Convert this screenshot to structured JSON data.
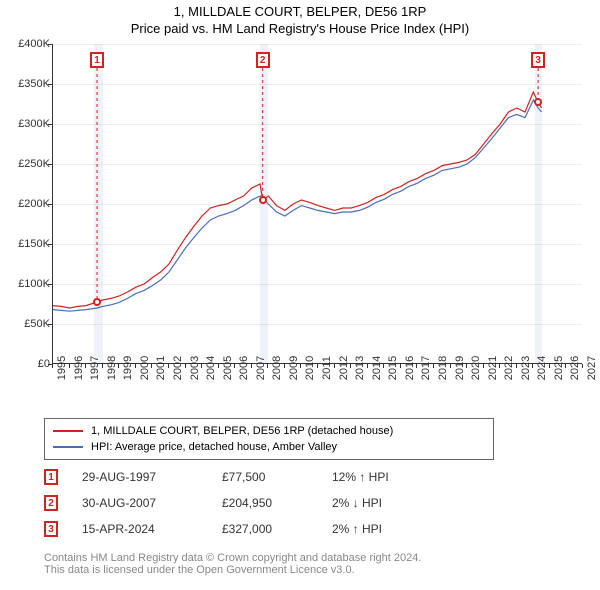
{
  "title_line1": "1, MILLDALE COURT, BELPER, DE56 1RP",
  "title_line2": "Price paid vs. HM Land Registry's House Price Index (HPI)",
  "chart": {
    "type": "line",
    "background_color": "#ffffff",
    "grid_color": "#eeeeee",
    "axis_color": "#333333",
    "label_fontsize": 11,
    "x": {
      "min_year": 1995,
      "max_year": 2027,
      "ticks": [
        1995,
        1996,
        1997,
        1998,
        1999,
        2000,
        2001,
        2002,
        2003,
        2004,
        2005,
        2006,
        2007,
        2008,
        2009,
        2010,
        2011,
        2012,
        2013,
        2014,
        2015,
        2016,
        2017,
        2018,
        2019,
        2020,
        2021,
        2022,
        2023,
        2024,
        2025,
        2026,
        2027
      ]
    },
    "y": {
      "min": 0,
      "max": 400000,
      "tick_step": 50000,
      "tick_labels": [
        "£0",
        "£50K",
        "£100K",
        "£150K",
        "£200K",
        "£250K",
        "£300K",
        "£350K",
        "£400K"
      ]
    },
    "shade_bands": [
      {
        "start_year": 1997.5,
        "end_year": 1998.0,
        "color": "#e8eef7"
      },
      {
        "start_year": 2007.5,
        "end_year": 2008.0,
        "color": "#e8eef7"
      },
      {
        "start_year": 2024.1,
        "end_year": 2024.5,
        "color": "#e8eef7"
      }
    ],
    "series": [
      {
        "name": "1, MILLDALE COURT, BELPER, DE56 1RP (detached house)",
        "color": "#d22222",
        "line_width": 1.2,
        "points": [
          [
            1995.0,
            73000
          ],
          [
            1995.5,
            72000
          ],
          [
            1996.0,
            70000
          ],
          [
            1996.5,
            72000
          ],
          [
            1997.0,
            73000
          ],
          [
            1997.66,
            77500
          ],
          [
            1998.0,
            80000
          ],
          [
            1998.5,
            82000
          ],
          [
            1999.0,
            85000
          ],
          [
            1999.5,
            90000
          ],
          [
            2000.0,
            96000
          ],
          [
            2000.5,
            100000
          ],
          [
            2001.0,
            108000
          ],
          [
            2001.5,
            115000
          ],
          [
            2002.0,
            125000
          ],
          [
            2002.5,
            142000
          ],
          [
            2003.0,
            158000
          ],
          [
            2003.5,
            172000
          ],
          [
            2004.0,
            185000
          ],
          [
            2004.5,
            195000
          ],
          [
            2005.0,
            198000
          ],
          [
            2005.5,
            200000
          ],
          [
            2006.0,
            205000
          ],
          [
            2006.5,
            210000
          ],
          [
            2007.0,
            220000
          ],
          [
            2007.5,
            225000
          ],
          [
            2007.66,
            204950
          ],
          [
            2008.0,
            210000
          ],
          [
            2008.5,
            198000
          ],
          [
            2009.0,
            192000
          ],
          [
            2009.5,
            200000
          ],
          [
            2010.0,
            205000
          ],
          [
            2010.5,
            202000
          ],
          [
            2011.0,
            198000
          ],
          [
            2011.5,
            195000
          ],
          [
            2012.0,
            192000
          ],
          [
            2012.5,
            195000
          ],
          [
            2013.0,
            195000
          ],
          [
            2013.5,
            198000
          ],
          [
            2014.0,
            202000
          ],
          [
            2014.5,
            208000
          ],
          [
            2015.0,
            212000
          ],
          [
            2015.5,
            218000
          ],
          [
            2016.0,
            222000
          ],
          [
            2016.5,
            228000
          ],
          [
            2017.0,
            232000
          ],
          [
            2017.5,
            238000
          ],
          [
            2018.0,
            242000
          ],
          [
            2018.5,
            248000
          ],
          [
            2019.0,
            250000
          ],
          [
            2019.5,
            252000
          ],
          [
            2020.0,
            255000
          ],
          [
            2020.5,
            262000
          ],
          [
            2021.0,
            275000
          ],
          [
            2021.5,
            288000
          ],
          [
            2022.0,
            300000
          ],
          [
            2022.5,
            315000
          ],
          [
            2023.0,
            320000
          ],
          [
            2023.5,
            315000
          ],
          [
            2024.0,
            340000
          ],
          [
            2024.29,
            327000
          ],
          [
            2024.5,
            320000
          ]
        ]
      },
      {
        "name": "HPI: Average price, detached house, Amber Valley",
        "color": "#4a6fb5",
        "line_width": 1.2,
        "points": [
          [
            1995.0,
            68000
          ],
          [
            1995.5,
            67000
          ],
          [
            1996.0,
            66000
          ],
          [
            1996.5,
            67000
          ],
          [
            1997.0,
            68000
          ],
          [
            1997.66,
            70000
          ],
          [
            1998.0,
            72000
          ],
          [
            1998.5,
            74000
          ],
          [
            1999.0,
            77000
          ],
          [
            1999.5,
            82000
          ],
          [
            2000.0,
            88000
          ],
          [
            2000.5,
            92000
          ],
          [
            2001.0,
            98000
          ],
          [
            2001.5,
            105000
          ],
          [
            2002.0,
            115000
          ],
          [
            2002.5,
            130000
          ],
          [
            2003.0,
            145000
          ],
          [
            2003.5,
            158000
          ],
          [
            2004.0,
            170000
          ],
          [
            2004.5,
            180000
          ],
          [
            2005.0,
            185000
          ],
          [
            2005.5,
            188000
          ],
          [
            2006.0,
            192000
          ],
          [
            2006.5,
            198000
          ],
          [
            2007.0,
            205000
          ],
          [
            2007.5,
            210000
          ],
          [
            2007.66,
            208000
          ],
          [
            2008.0,
            200000
          ],
          [
            2008.5,
            190000
          ],
          [
            2009.0,
            185000
          ],
          [
            2009.5,
            192000
          ],
          [
            2010.0,
            198000
          ],
          [
            2010.5,
            195000
          ],
          [
            2011.0,
            192000
          ],
          [
            2011.5,
            190000
          ],
          [
            2012.0,
            188000
          ],
          [
            2012.5,
            190000
          ],
          [
            2013.0,
            190000
          ],
          [
            2013.5,
            192000
          ],
          [
            2014.0,
            196000
          ],
          [
            2014.5,
            202000
          ],
          [
            2015.0,
            206000
          ],
          [
            2015.5,
            212000
          ],
          [
            2016.0,
            216000
          ],
          [
            2016.5,
            222000
          ],
          [
            2017.0,
            226000
          ],
          [
            2017.5,
            232000
          ],
          [
            2018.0,
            236000
          ],
          [
            2018.5,
            242000
          ],
          [
            2019.0,
            244000
          ],
          [
            2019.5,
            246000
          ],
          [
            2020.0,
            250000
          ],
          [
            2020.5,
            258000
          ],
          [
            2021.0,
            270000
          ],
          [
            2021.5,
            282000
          ],
          [
            2022.0,
            295000
          ],
          [
            2022.5,
            308000
          ],
          [
            2023.0,
            312000
          ],
          [
            2023.5,
            308000
          ],
          [
            2024.0,
            330000
          ],
          [
            2024.29,
            320000
          ],
          [
            2024.5,
            315000
          ]
        ]
      }
    ],
    "sale_markers": [
      {
        "n": "1",
        "year": 1997.66,
        "price": 77500,
        "box_top": 8
      },
      {
        "n": "2",
        "year": 2007.66,
        "price": 204950,
        "box_top": 8
      },
      {
        "n": "3",
        "year": 2024.29,
        "price": 327000,
        "box_top": 8
      }
    ],
    "marker_color": "#d22222"
  },
  "legend": {
    "items": [
      {
        "label": "1, MILLDALE COURT, BELPER, DE56 1RP (detached house)",
        "color": "#d22222"
      },
      {
        "label": "HPI: Average price, detached house, Amber Valley",
        "color": "#4a6fb5"
      }
    ]
  },
  "sales": [
    {
      "n": "1",
      "date": "29-AUG-1997",
      "price": "£77,500",
      "diff": "12% ↑ HPI"
    },
    {
      "n": "2",
      "date": "30-AUG-2007",
      "price": "£204,950",
      "diff": "2% ↓ HPI"
    },
    {
      "n": "3",
      "date": "15-APR-2024",
      "price": "£327,000",
      "diff": "2% ↑ HPI"
    }
  ],
  "footer": {
    "line1": "Contains HM Land Registry data © Crown copyright and database right 2024.",
    "line2": "This data is licensed under the Open Government Licence v3.0."
  }
}
